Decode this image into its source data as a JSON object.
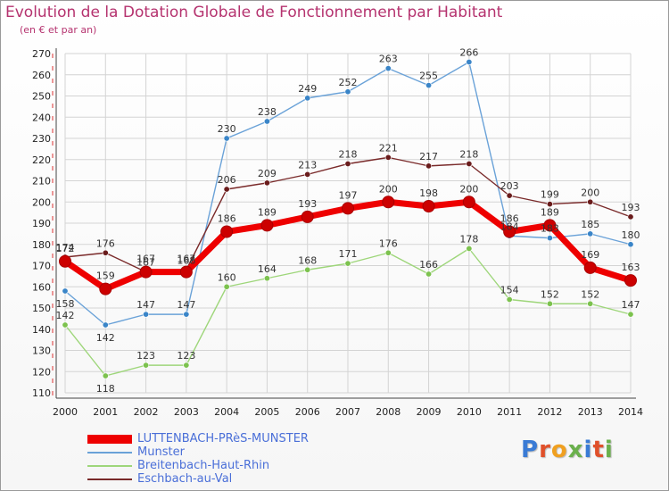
{
  "title": "Evolution de la Dotation Globale de Fonctionnement par Habitant",
  "subtitle": "(en € et par an)",
  "logo": {
    "letters": [
      "P",
      "r",
      "o",
      "x",
      "i",
      "t",
      "i"
    ],
    "colors": [
      "#3a7bd5",
      "#e0502a",
      "#f0a020",
      "#6ab04c",
      "#3a7bd5",
      "#e0502a",
      "#6ab04c"
    ]
  },
  "chart_data": {
    "type": "line",
    "x": [
      2000,
      2001,
      2002,
      2003,
      2004,
      2005,
      2006,
      2007,
      2008,
      2009,
      2010,
      2011,
      2012,
      2013,
      2014
    ],
    "x_tick_labels": [
      "2000",
      "2001",
      "2002",
      "2003",
      "2004",
      "2005",
      "2006",
      "2007",
      "2008",
      "2009",
      "2010",
      "2011",
      "2012",
      "2013",
      "2014"
    ],
    "ylim": [
      110,
      270
    ],
    "y_ticks": [
      110,
      120,
      130,
      140,
      150,
      160,
      170,
      180,
      190,
      200,
      210,
      220,
      230,
      240,
      250,
      260,
      270
    ],
    "y_tick_labels": [
      "110",
      "120",
      "130",
      "140",
      "150",
      "160",
      "170",
      "180",
      "190",
      "200",
      "210",
      "220",
      "230",
      "240",
      "250",
      "260",
      "270"
    ],
    "grid": true,
    "legend_position": "bottom-left",
    "series": [
      {
        "name": "Munster",
        "color": "#6aa2d8",
        "marker": "#3a85c8",
        "values": [
          158,
          142,
          147,
          147,
          230,
          238,
          249,
          252,
          263,
          255,
          266,
          184,
          183,
          185,
          180
        ]
      },
      {
        "name": "Breitenbach-Haut-Rhin",
        "color": "#9ed67a",
        "marker": "#7cc24e",
        "values": [
          142,
          118,
          123,
          123,
          160,
          164,
          168,
          171,
          176,
          166,
          178,
          154,
          152,
          152,
          147
        ]
      },
      {
        "name": "Eschbach-au-Val",
        "color": "#7a2a2a",
        "marker": "#6a1c1c",
        "values": [
          174,
          176,
          167,
          168,
          206,
          209,
          213,
          218,
          221,
          217,
          218,
          203,
          199,
          200,
          193
        ]
      },
      {
        "name": "LUTTENBACH-PRèS-MUNSTER",
        "color": "#ee0000",
        "marker": "#cc0000",
        "values": [
          172,
          159,
          167,
          167,
          186,
          189,
          193,
          197,
          200,
          198,
          200,
          186,
          189,
          169,
          163
        ]
      }
    ]
  },
  "legend": [
    {
      "label": "LUTTENBACH-PRèS-MUNSTER",
      "color": "#ee0000"
    },
    {
      "label": "Munster",
      "color": "#6aa2d8"
    },
    {
      "label": "Breitenbach-Haut-Rhin",
      "color": "#9ed67a"
    },
    {
      "label": "Eschbach-au-Val",
      "color": "#7a2a2a"
    }
  ]
}
